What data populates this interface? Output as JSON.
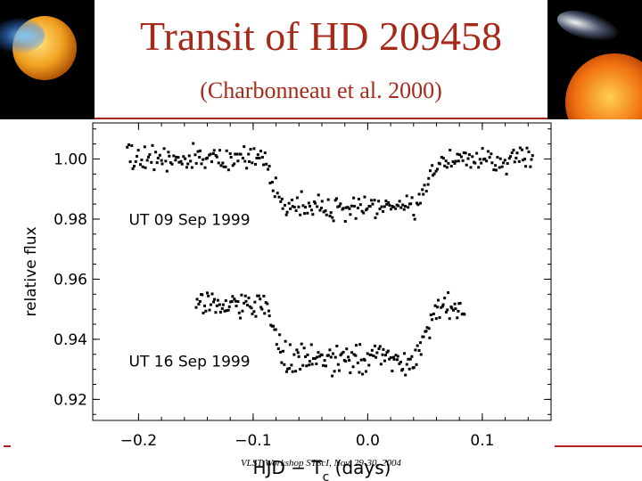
{
  "slide": {
    "title": "Transit of HD 209458",
    "subtitle": "(Charbonneau et al. 2000)",
    "footer": "VLST Workshop    STScI, Nov. 29-30, 2004"
  },
  "chart_data": {
    "type": "scatter",
    "title": "",
    "xlabel_pre": "HJD − T",
    "xlabel_sub": "c",
    "xlabel_post": " (days)",
    "ylabel": "relative flux",
    "xlim": [
      -0.24,
      0.16
    ],
    "ylim": [
      0.913,
      1.012
    ],
    "x_ticks": [
      -0.2,
      -0.1,
      0.0,
      0.1
    ],
    "x_tick_labels": [
      "−0.2",
      "−0.1",
      "0.0",
      "0.1"
    ],
    "y_ticks": [
      0.92,
      0.94,
      0.96,
      0.98,
      1.0
    ],
    "y_tick_labels": [
      "0.92",
      "0.94",
      "0.96",
      "0.98",
      "1.00"
    ],
    "grid": false,
    "legend": "none",
    "transit": {
      "ingress_start": -0.09,
      "ingress_end": -0.074,
      "egress_start": 0.04,
      "egress_end": 0.065
    },
    "series": [
      {
        "label": "UT 09 Sep 1999",
        "x_start": -0.21,
        "x_end": 0.145,
        "points": 290,
        "baseline": 1.0,
        "depth": 0.016,
        "scatter": 0.003
      },
      {
        "label": "UT 16 Sep 1999",
        "x_start": -0.15,
        "x_end": 0.085,
        "points": 220,
        "baseline": 0.951,
        "depth": 0.017,
        "scatter": 0.0035
      }
    ],
    "annotations": [
      {
        "text": "UT 09 Sep 1999",
        "x": -0.21,
        "y": 0.978
      },
      {
        "text": "UT 16 Sep 1999",
        "x": -0.21,
        "y": 0.931
      }
    ]
  },
  "colors": {
    "title": "#a52a1a",
    "axis": "#000000",
    "points": "#000000"
  }
}
